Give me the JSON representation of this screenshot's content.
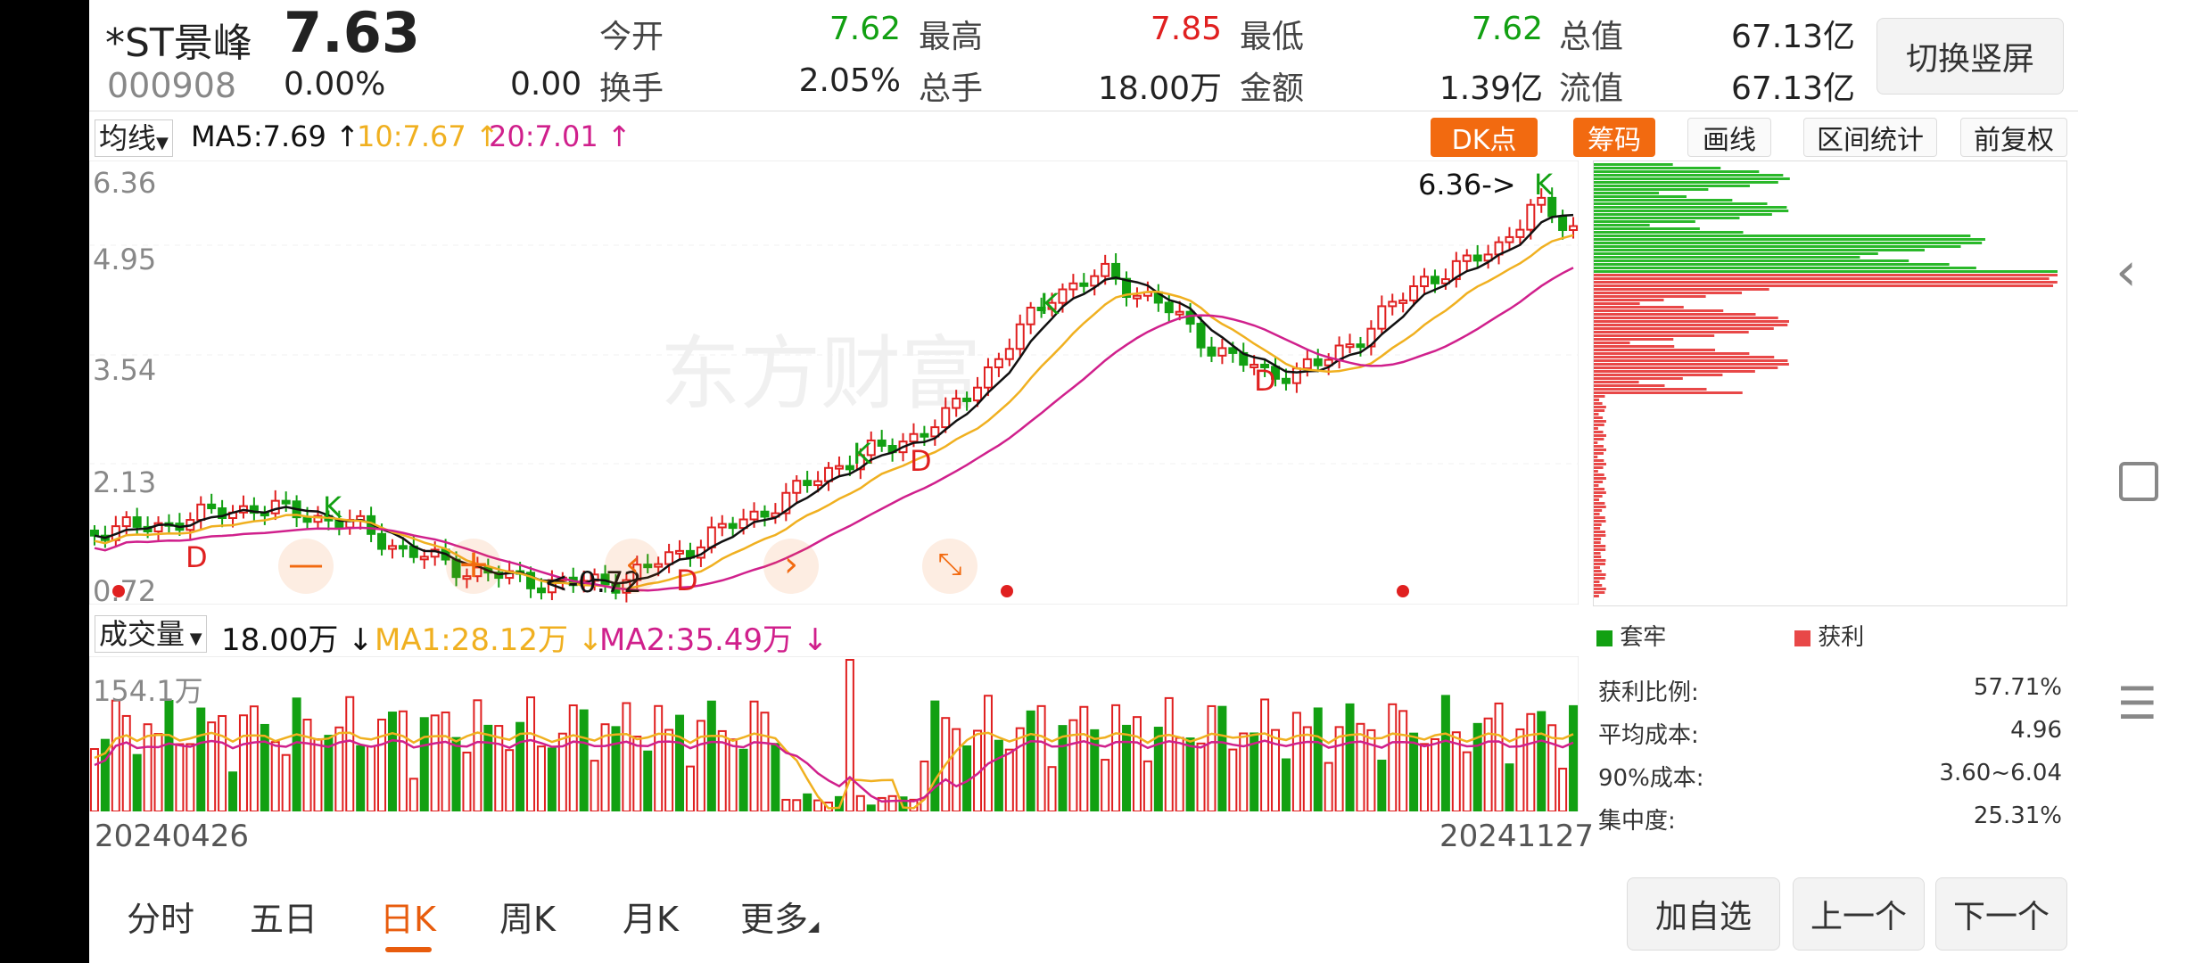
{
  "stock": {
    "name": "*ST景峰",
    "code": "000908",
    "price": "7.63",
    "change_pct": "0.00%",
    "change": "0.00"
  },
  "quote": [
    {
      "label": "今开",
      "value": "7.62",
      "color": "green"
    },
    {
      "label": "最高",
      "value": "7.85",
      "color": "red"
    },
    {
      "label": "最低",
      "value": "7.62",
      "color": "green"
    },
    {
      "label": "总值",
      "value": "67.13亿",
      "color": "black"
    },
    {
      "label": "换手",
      "value": "2.05%",
      "color": "black"
    },
    {
      "label": "总手",
      "value": "18.00万",
      "color": "black"
    },
    {
      "label": "金额",
      "value": "1.39亿",
      "color": "black"
    },
    {
      "label": "流值",
      "value": "67.13亿",
      "color": "black"
    }
  ],
  "switch_button": "切换竖屏",
  "ma_bar": {
    "selector": "均线",
    "ma5": "MA5:7.69",
    "ma10": "10:7.67",
    "ma20": "20:7.01",
    "arrow": "↑"
  },
  "tools": {
    "dk": "DK点",
    "chips": "筹码",
    "draw": "画线",
    "range": "区间统计",
    "adjust": "前复权"
  },
  "price_axis": [
    "6.36",
    "4.95",
    "3.54",
    "2.13",
    "0.72"
  ],
  "annotations": {
    "high": "6.36->",
    "low": "<-0.72",
    "k": "K",
    "d": "D"
  },
  "watermark": "东方财富",
  "volume_bar": {
    "selector": "成交量",
    "vol": "18.00万",
    "ma1": "MA1:28.12万",
    "ma2": "MA2:35.49万",
    "arrow": "↓"
  },
  "volume_axis_max": "154.1万",
  "dates": {
    "start": "20240426",
    "end": "20241127"
  },
  "chips": {
    "legend_trapped": "套牢",
    "legend_profit": "获利",
    "stats": [
      {
        "label": "获利比例:",
        "value": "57.71%"
      },
      {
        "label": "平均成本:",
        "value": "4.96"
      },
      {
        "label": "90%成本:",
        "value": "3.60~6.04"
      },
      {
        "label": "集中度:",
        "value": "25.31%"
      }
    ]
  },
  "tabs": [
    "分时",
    "五日",
    "日K",
    "周K",
    "月K",
    "更多"
  ],
  "active_tab": "日K",
  "bottom_buttons": {
    "add": "加自选",
    "prev": "上一个",
    "next": "下一个"
  },
  "colors": {
    "up": "#e02020",
    "down": "#12a012",
    "ma5": "#111111",
    "ma10": "#f0b020",
    "ma20": "#d0208c",
    "accent": "#f26a10"
  },
  "chart_data": {
    "type": "candlestick",
    "ma_lines": [
      "MA5",
      "MA10",
      "MA20"
    ],
    "price_range": [
      0.72,
      6.36
    ],
    "volume_max": "154.1万"
  }
}
